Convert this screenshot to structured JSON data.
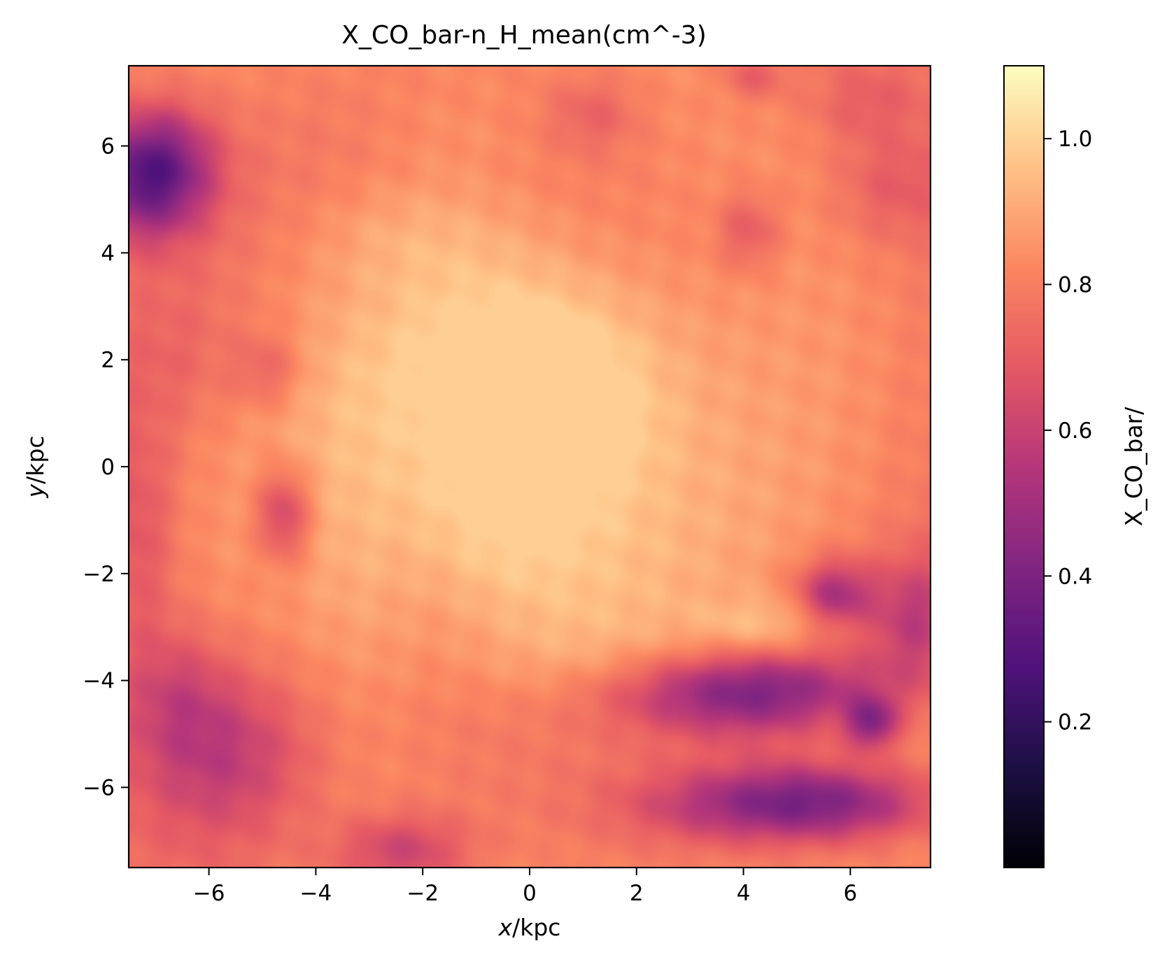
{
  "chart_data": {
    "type": "heatmap",
    "title": "X_CO_bar-n_H_mean(cm^-3)",
    "xlabel_italic": "x",
    "xlabel_rest": "/kpc",
    "ylabel_italic": "y",
    "ylabel_rest": "/kpc",
    "xlim": [
      -7.5,
      7.5
    ],
    "ylim": [
      -7.5,
      7.5
    ],
    "x_ticks": [
      -6,
      -4,
      -2,
      0,
      2,
      4,
      6
    ],
    "x_tick_labels": [
      "−6",
      "−4",
      "−2",
      "0",
      "2",
      "4",
      "6"
    ],
    "y_ticks": [
      -6,
      -4,
      -2,
      0,
      2,
      4,
      6
    ],
    "y_tick_labels": [
      "−6",
      "−4",
      "−2",
      "0",
      "2",
      "4",
      "6"
    ],
    "colormap": "magma",
    "colorbar": {
      "label": "X_CO_bar/",
      "range": [
        0.0,
        1.1
      ],
      "ticks": [
        0.2,
        0.4,
        0.6,
        0.8,
        1.0
      ],
      "tick_labels": [
        "0.2",
        "0.4",
        "0.6",
        "0.8",
        "1.0"
      ]
    },
    "field": {
      "description_values": "approximate field values in colorbar units",
      "background": 0.8,
      "features": [
        {
          "x": 0.0,
          "y": 0.3,
          "sx": 2.6,
          "sy": 2.6,
          "a": 0.22
        },
        {
          "x": 0.6,
          "y": 1.5,
          "sx": 2.2,
          "sy": 1.6,
          "a": 0.08
        },
        {
          "x": -2.2,
          "y": 4.4,
          "sx": 1.5,
          "sy": 0.8,
          "a": 0.08
        },
        {
          "x": -3.2,
          "y": -1.8,
          "sx": 0.9,
          "sy": 2.2,
          "a": 0.07
        },
        {
          "x": 2.2,
          "y": -3.8,
          "sx": 2.0,
          "sy": 0.6,
          "a": 0.08
        },
        {
          "x": 4.6,
          "y": -3.0,
          "sx": 1.0,
          "sy": 0.4,
          "a": 0.12
        },
        {
          "x": 6.3,
          "y": -4.8,
          "sx": 0.9,
          "sy": 0.6,
          "a": 0.08
        },
        {
          "x": -1.4,
          "y": 6.2,
          "sx": 1.2,
          "sy": 0.8,
          "a": 0.05
        },
        {
          "x": -7.2,
          "y": 5.4,
          "sx": 0.8,
          "sy": 0.8,
          "a": -0.4
        },
        {
          "x": -6.8,
          "y": 5.8,
          "sx": 0.7,
          "sy": 0.8,
          "a": -0.15
        },
        {
          "x": 4.0,
          "y": -4.2,
          "sx": 1.8,
          "sy": 0.55,
          "a": -0.42
        },
        {
          "x": 5.2,
          "y": -6.3,
          "sx": 1.6,
          "sy": 0.5,
          "a": -0.4
        },
        {
          "x": 6.4,
          "y": -4.8,
          "sx": 0.35,
          "sy": 0.35,
          "a": -0.35
        },
        {
          "x": 5.7,
          "y": -2.4,
          "sx": 0.5,
          "sy": 0.45,
          "a": -0.3
        },
        {
          "x": 7.2,
          "y": -2.8,
          "sx": 0.6,
          "sy": 0.8,
          "a": -0.2
        },
        {
          "x": -5.6,
          "y": -5.4,
          "sx": 1.2,
          "sy": 1.2,
          "a": -0.24
        },
        {
          "x": -6.6,
          "y": -4.2,
          "sx": 0.7,
          "sy": 0.9,
          "a": -0.12
        },
        {
          "x": -2.4,
          "y": -7.2,
          "sx": 0.9,
          "sy": 0.5,
          "a": -0.22
        },
        {
          "x": -7.3,
          "y": -1.2,
          "sx": 0.5,
          "sy": 1.6,
          "a": -0.12
        },
        {
          "x": -4.6,
          "y": -0.9,
          "sx": 0.35,
          "sy": 0.6,
          "a": -0.24
        },
        {
          "x": -4.9,
          "y": 1.8,
          "sx": 0.45,
          "sy": 0.5,
          "a": -0.12
        },
        {
          "x": 4.1,
          "y": 4.4,
          "sx": 0.4,
          "sy": 0.5,
          "a": -0.14
        },
        {
          "x": 6.8,
          "y": 5.2,
          "sx": 0.8,
          "sy": 0.7,
          "a": -0.1
        },
        {
          "x": 1.2,
          "y": 6.6,
          "sx": 0.6,
          "sy": 0.5,
          "a": -0.1
        },
        {
          "x": 6.2,
          "y": 6.8,
          "sx": 0.7,
          "sy": 0.5,
          "a": -0.08
        },
        {
          "x": 4.2,
          "y": 7.3,
          "sx": 0.4,
          "sy": 0.3,
          "a": -0.12
        },
        {
          "x": -6.5,
          "y": 2.0,
          "sx": 0.8,
          "sy": 1.0,
          "a": -0.06
        },
        {
          "x": 2.8,
          "y": -6.4,
          "sx": 1.2,
          "sy": 0.5,
          "a": -0.06
        }
      ]
    }
  }
}
